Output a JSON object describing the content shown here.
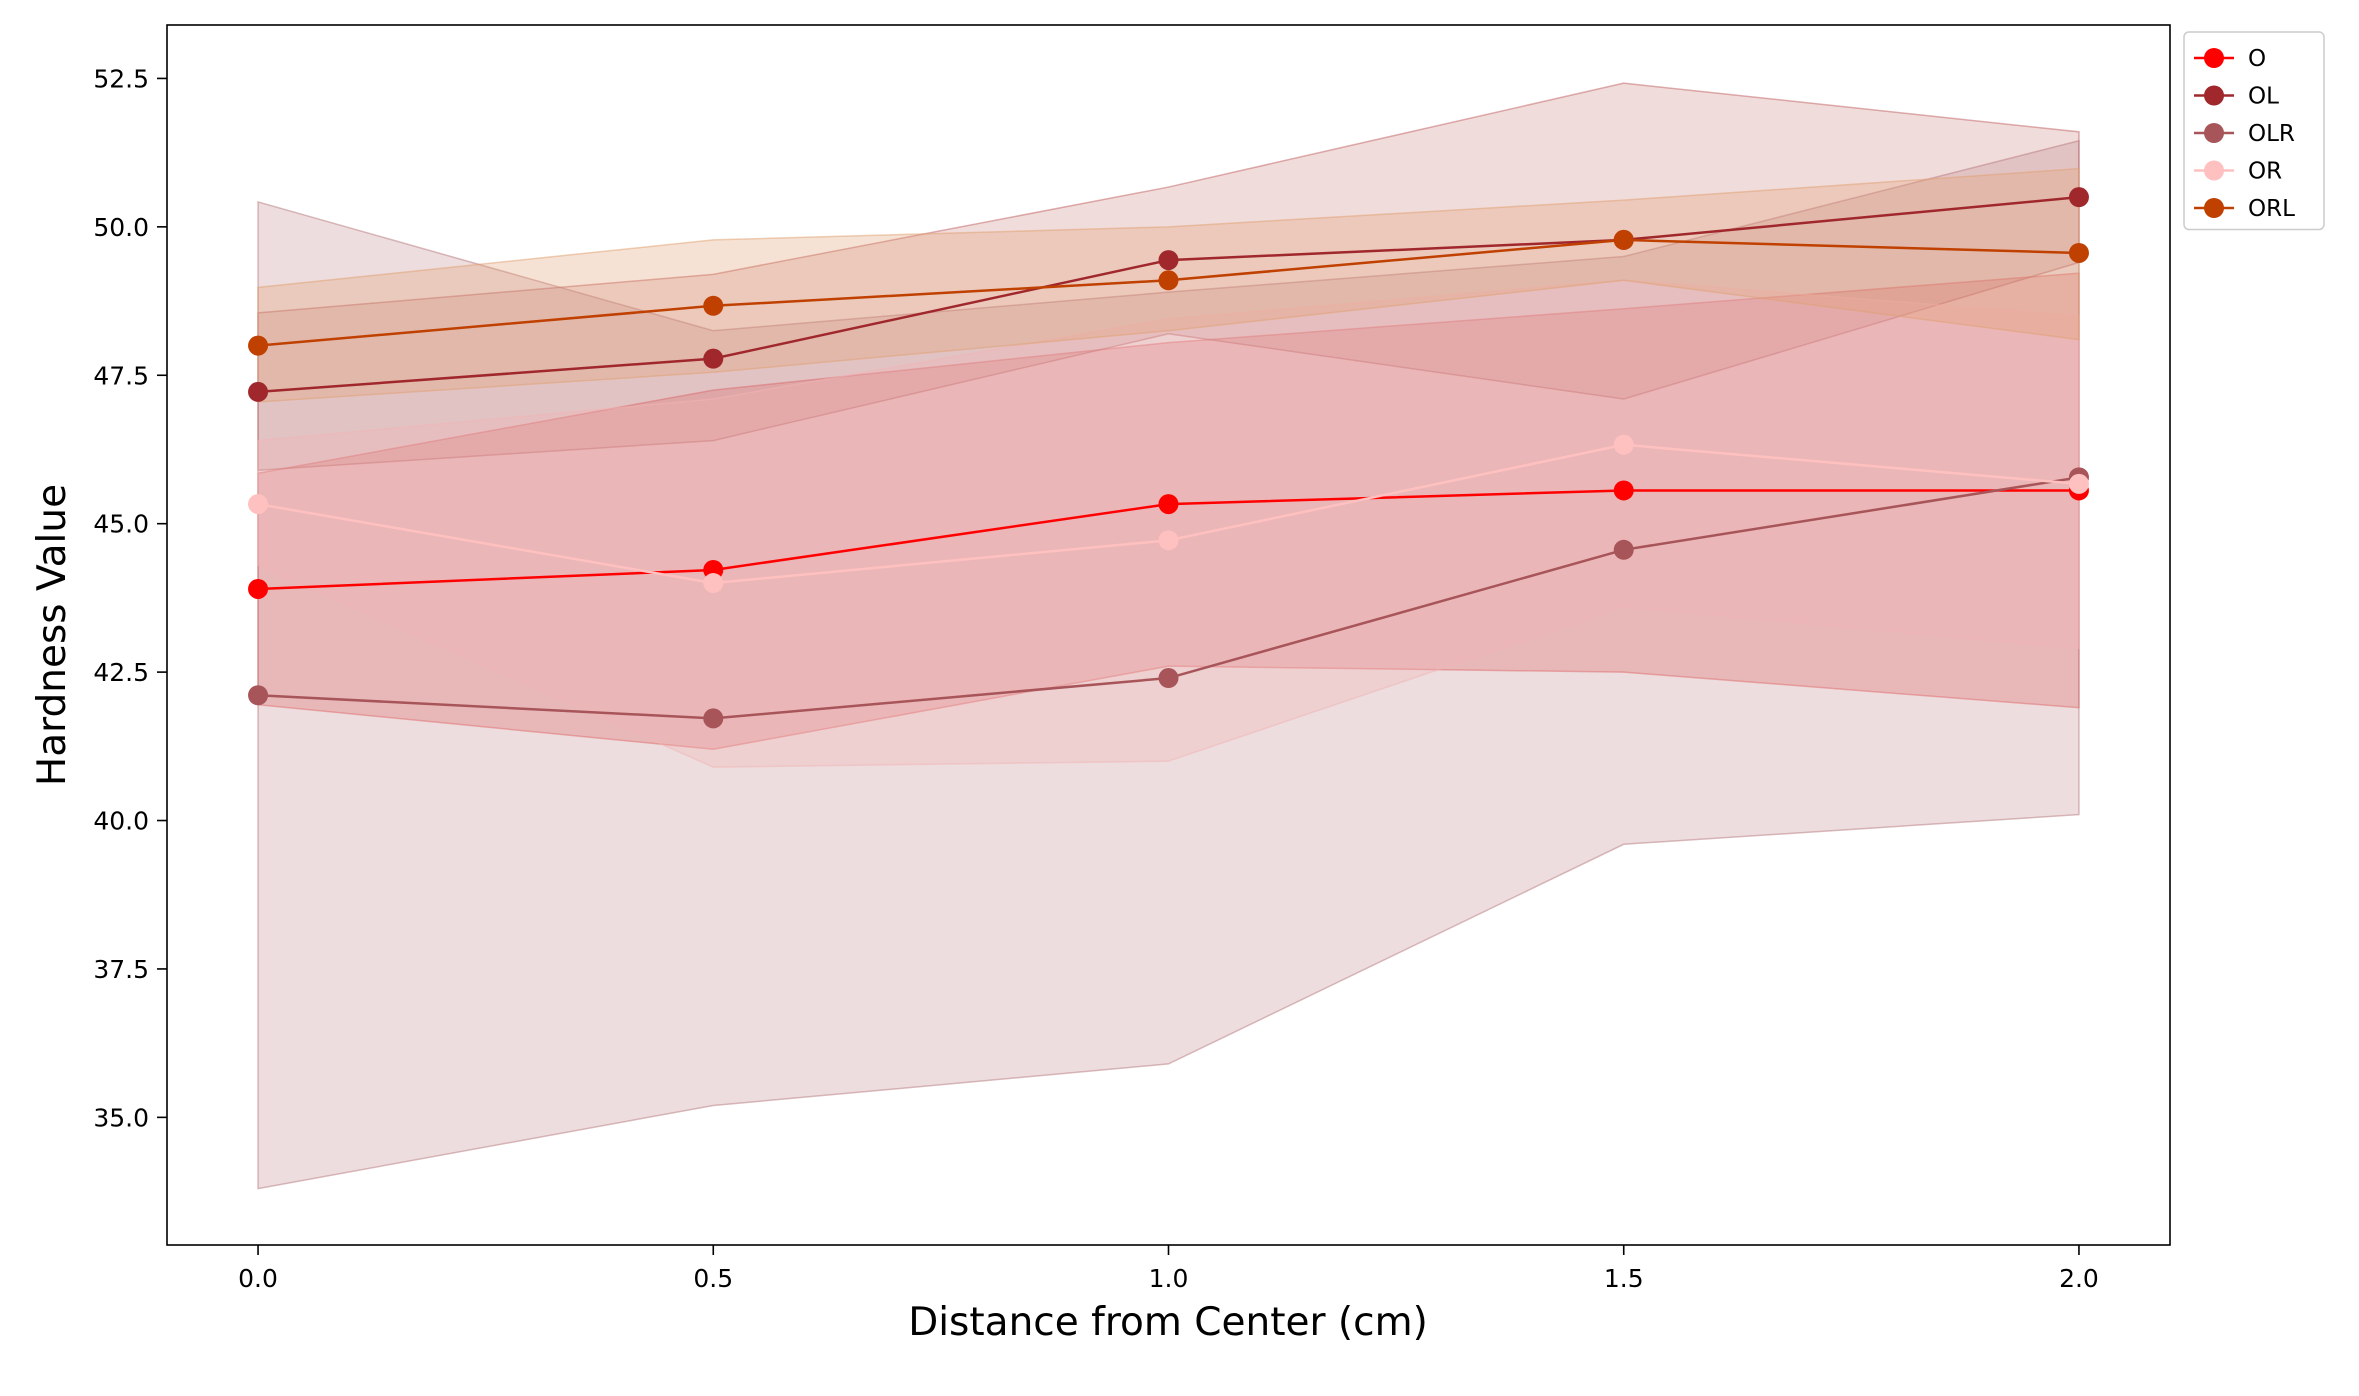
{
  "chart_data": {
    "type": "line",
    "title": "",
    "xlabel": "Distance from Center (cm)",
    "ylabel": "Hardness Value",
    "x": [
      0.0,
      0.5,
      1.0,
      1.5,
      2.0
    ],
    "xticks": [
      "0.0",
      "0.5",
      "1.0",
      "1.5",
      "2.0"
    ],
    "yticks": [
      "35.0",
      "37.5",
      "40.0",
      "42.5",
      "45.0",
      "47.5",
      "50.0",
      "52.5"
    ],
    "xlim": [
      -0.1,
      2.1
    ],
    "ylim": [
      32.85,
      53.4
    ],
    "grid": false,
    "legend_position": "outside-top-right",
    "series": [
      {
        "name": "O",
        "color": "#ff0000",
        "band_color": "#ee6666",
        "band_opacity": 0.33,
        "values": [
          43.9,
          44.22,
          45.33,
          45.56,
          45.56
        ],
        "lower": [
          41.95,
          41.2,
          42.6,
          42.5,
          41.9
        ],
        "upper": [
          45.85,
          47.25,
          48.05,
          48.62,
          49.22
        ]
      },
      {
        "name": "OL",
        "color": "#a0282c",
        "band_color": "#c06060",
        "band_opacity": 0.22,
        "values": [
          47.22,
          47.78,
          49.44,
          49.78,
          50.5
        ],
        "lower": [
          45.9,
          46.4,
          48.2,
          47.1,
          49.4
        ],
        "upper": [
          48.55,
          49.2,
          50.67,
          52.42,
          51.6
        ]
      },
      {
        "name": "OLR",
        "color": "#a8555a",
        "band_color": "#b87a7e",
        "band_opacity": 0.26,
        "values": [
          42.11,
          41.72,
          42.4,
          44.56,
          45.78
        ],
        "lower": [
          33.8,
          35.2,
          35.9,
          39.6,
          40.1
        ],
        "upper": [
          50.42,
          48.25,
          48.9,
          49.5,
          51.45
        ]
      },
      {
        "name": "OR",
        "color": "#ffc0c0",
        "band_color": "#f2b3b3",
        "band_opacity": 0.3,
        "values": [
          45.33,
          44.0,
          44.72,
          46.33,
          45.67
        ],
        "lower": [
          44.3,
          40.9,
          41.0,
          43.6,
          42.9
        ],
        "upper": [
          46.4,
          47.1,
          48.45,
          49.1,
          48.5
        ]
      },
      {
        "name": "ORL",
        "color": "#c04000",
        "band_color": "#e0a070",
        "band_opacity": 0.3,
        "values": [
          48.0,
          48.67,
          49.1,
          49.78,
          49.56
        ],
        "lower": [
          47.05,
          47.55,
          48.25,
          49.1,
          48.1
        ],
        "upper": [
          48.98,
          49.78,
          50.0,
          50.45,
          50.98
        ]
      }
    ]
  }
}
